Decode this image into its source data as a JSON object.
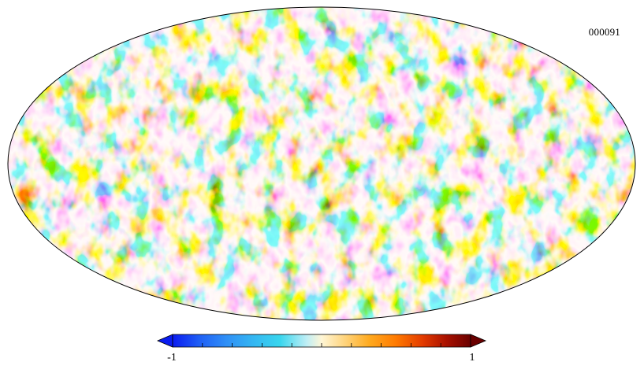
{
  "map": {
    "id_label": "000091",
    "projection": "mollweide"
  },
  "colorbar": {
    "min_label": "-1",
    "max_label": "1",
    "tick_count": 11,
    "colors": [
      "#0a1cf0",
      "#1f5ff5",
      "#2f8ff6",
      "#34b6f2",
      "#38d6ee",
      "#bfeef5",
      "#fff6d6",
      "#ffd37a",
      "#ffaa1f",
      "#ff7a00",
      "#e23a00",
      "#a81000",
      "#6a0000"
    ]
  }
}
